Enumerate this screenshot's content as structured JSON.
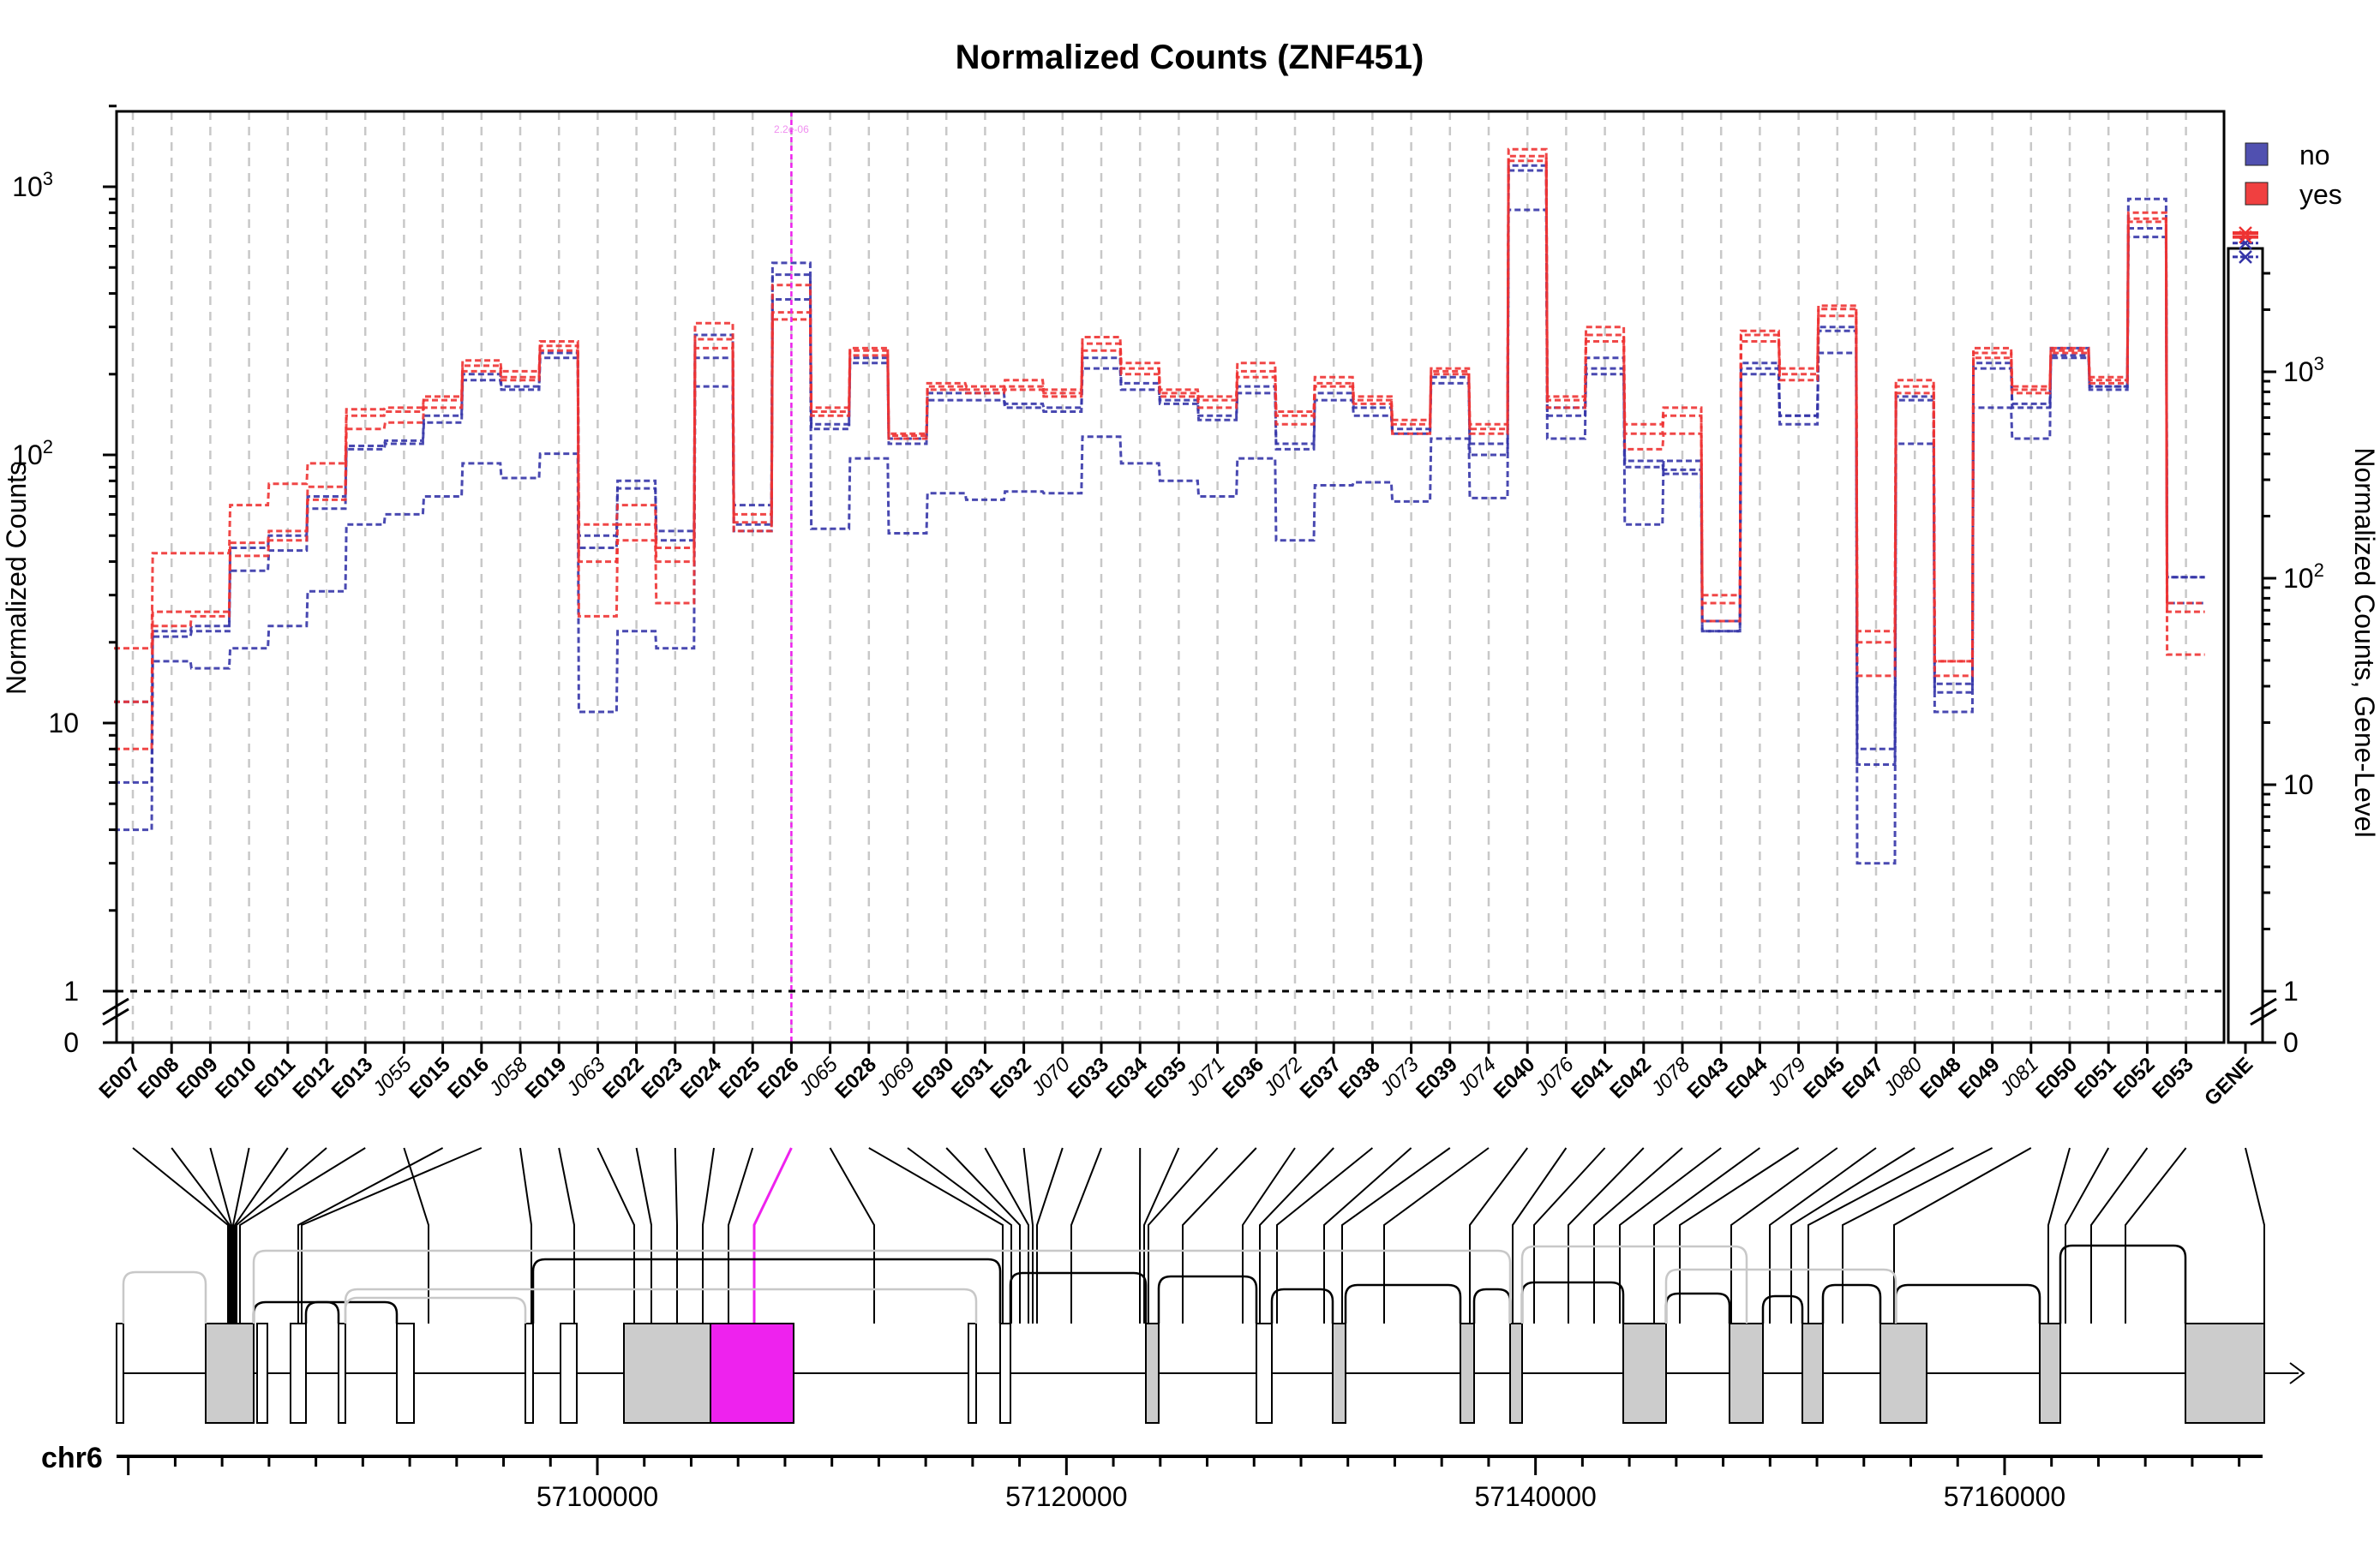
{
  "chart_data": {
    "type": "line",
    "title": "Normalized Counts (ZNF451)",
    "ylabel": "Normalized Counts",
    "ylabel_right": "Normalized Counts, Gene-Level",
    "y_scale": "log",
    "ylim": [
      0,
      2000
    ],
    "y_ticks": [
      "0",
      "1",
      "10",
      "10^2",
      "10^3"
    ],
    "y_ticks_right": [
      "0",
      "1",
      "10",
      "10^2",
      "10^3"
    ],
    "grid": "vertical dashed gray",
    "legend_position": "top-right",
    "highlight": {
      "category": "E026",
      "label": "2.2e-06",
      "color": "#ee22ee"
    },
    "categories": [
      "E007",
      "E008",
      "E009",
      "E010",
      "E011",
      "E012",
      "E013",
      "J055",
      "E015",
      "E016",
      "J058",
      "E019",
      "J063",
      "E022",
      "E023",
      "E024",
      "E025",
      "E026",
      "J065",
      "E028",
      "J069",
      "E030",
      "E031",
      "E032",
      "J070",
      "E033",
      "E034",
      "E035",
      "J071",
      "E036",
      "J072",
      "E037",
      "E038",
      "J073",
      "E039",
      "J074",
      "E040",
      "J076",
      "E041",
      "E042",
      "J078",
      "E043",
      "E044",
      "J079",
      "E045",
      "E047",
      "J080",
      "E048",
      "E049",
      "J081",
      "E050",
      "E051",
      "E052",
      "E053"
    ],
    "italic_categories": [
      "J055",
      "J058",
      "J063",
      "J065",
      "J069",
      "J070",
      "J071",
      "J072",
      "J073",
      "J074",
      "J076",
      "J078",
      "J079",
      "J080",
      "J081"
    ],
    "gene_label": "GENE",
    "series": [
      {
        "name": "no",
        "color": "#3535a8",
        "samples": [
          [
            12,
            21,
            22,
            37,
            44,
            63,
            105,
            110,
            132,
            190,
            175,
            230,
            50,
            80,
            48,
            280,
            65,
            520,
            125,
            220,
            110,
            160,
            160,
            150,
            145,
            210,
            175,
            155,
            135,
            170,
            105,
            160,
            140,
            120,
            185,
            100,
            1150,
            140,
            200,
            95,
            85,
            24,
            210,
            130,
            290,
            8,
            160,
            14,
            210,
            155,
            230,
            175,
            650,
            35
          ],
          [
            6,
            22,
            23,
            45,
            50,
            70,
            108,
            113,
            140,
            200,
            180,
            240,
            45,
            75,
            52,
            230,
            52,
            470,
            130,
            230,
            115,
            170,
            170,
            155,
            150,
            230,
            185,
            160,
            140,
            180,
            110,
            170,
            150,
            125,
            195,
            110,
            1200,
            150,
            210,
            90,
            88,
            22,
            220,
            140,
            300,
            7,
            165,
            13,
            220,
            150,
            235,
            180,
            700,
            28
          ],
          [
            4,
            17,
            16,
            19,
            23,
            31,
            55,
            60,
            70,
            93,
            82,
            101,
            11,
            22,
            19,
            180,
            55,
            380,
            53,
            97,
            51,
            72,
            68,
            73,
            72,
            117,
            93,
            80,
            70,
            97,
            48,
            77,
            79,
            67,
            115,
            69,
            820,
            115,
            230,
            55,
            95,
            22,
            200,
            140,
            240,
            3,
            110,
            11,
            150,
            115,
            250,
            180,
            900,
            35
          ]
        ]
      },
      {
        "name": "yes",
        "color": "#ee3333",
        "samples": [
          [
            19,
            43,
            43,
            65,
            78,
            93,
            148,
            150,
            165,
            225,
            205,
            265,
            55,
            65,
            45,
            310,
            60,
            430,
            145,
            250,
            120,
            185,
            180,
            190,
            175,
            275,
            220,
            175,
            165,
            220,
            145,
            195,
            165,
            135,
            210,
            130,
            1380,
            160,
            300,
            130,
            150,
            30,
            290,
            210,
            360,
            22,
            190,
            17,
            250,
            180,
            250,
            195,
            800,
            28
          ],
          [
            12,
            26,
            26,
            47,
            52,
            76,
            140,
            145,
            160,
            215,
            195,
            255,
            40,
            55,
            40,
            270,
            56,
            340,
            150,
            245,
            118,
            180,
            175,
            180,
            170,
            260,
            210,
            170,
            160,
            205,
            140,
            185,
            160,
            130,
            205,
            125,
            1300,
            165,
            280,
            120,
            140,
            28,
            280,
            200,
            350,
            20,
            180,
            17,
            240,
            175,
            245,
            190,
            760,
            26
          ],
          [
            8,
            23,
            25,
            42,
            48,
            68,
            125,
            132,
            150,
            205,
            190,
            245,
            25,
            48,
            28,
            250,
            52,
            320,
            140,
            235,
            115,
            175,
            170,
            175,
            165,
            245,
            200,
            165,
            150,
            195,
            130,
            180,
            155,
            120,
            200,
            120,
            1250,
            150,
            265,
            105,
            120,
            24,
            265,
            190,
            330,
            15,
            170,
            15,
            230,
            170,
            240,
            185,
            740,
            18
          ]
        ]
      }
    ],
    "gene_level": {
      "no": [
        3600,
        4200
      ],
      "yes": [
        4500,
        4700
      ]
    },
    "legend": [
      "no",
      "yes"
    ],
    "genome": {
      "chromosome": "chr6",
      "x_ticks": [
        "57100000",
        "57120000",
        "57140000",
        "57160000"
      ],
      "x_tick_values": [
        57100000,
        57120000,
        57140000,
        57160000
      ],
      "range": [
        57079500,
        57171000
      ]
    }
  }
}
